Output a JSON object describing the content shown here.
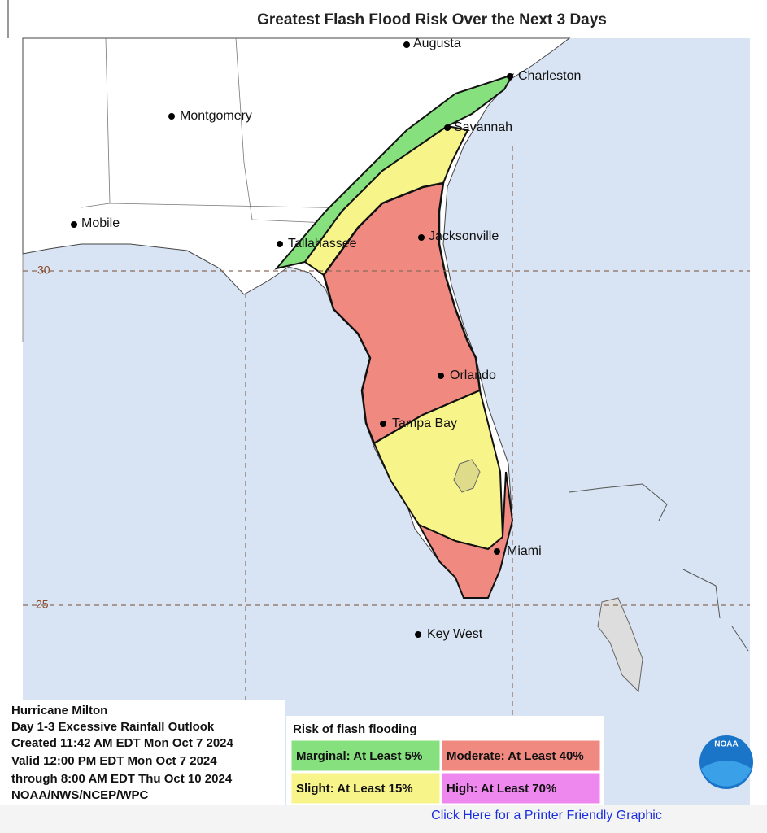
{
  "title": "Greatest Flash Flood Risk Over the Next 3 Days",
  "cities": [
    "Augusta",
    "Charleston",
    "Montgomery",
    "Savannah",
    "Mobile",
    "Tallahassee",
    "Jacksonville",
    "Orlando",
    "Tampa Bay",
    "Miami",
    "Key West"
  ],
  "latitude_labels": [
    30,
    25
  ],
  "info": [
    "Hurricane Milton",
    "Day 1-3 Excessive Rainfall Outlook",
    "Created 11:42 AM EDT Mon Oct 7 2024",
    "Valid 12:00 PM EDT Mon Oct 7 2024",
    "through 8:00 AM EDT Thu Oct 10 2024",
    "NOAA/NWS/NCEP/WPC"
  ],
  "legend": {
    "title": "Risk of flash flooding",
    "items": [
      "Marginal: At Least 5%",
      "Moderate: At Least 40%",
      "Slight: At Least 15%",
      "High: At Least 70%"
    ]
  },
  "logo": "NOAA",
  "link": "Click Here for a Printer Friendly Graphic"
}
